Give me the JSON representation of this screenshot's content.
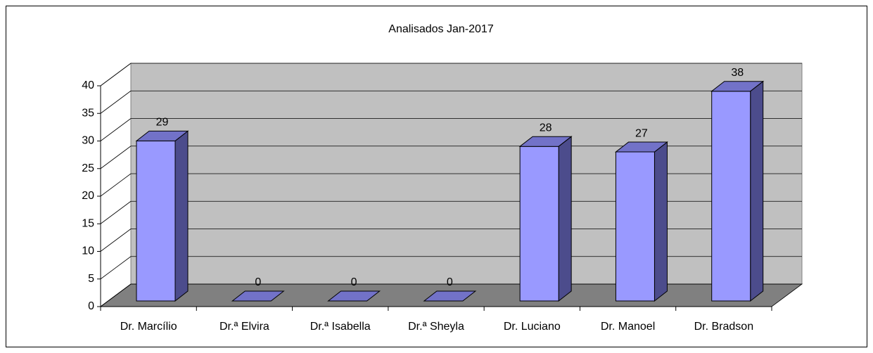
{
  "chart_data": {
    "type": "bar3d",
    "title": "Analisados Jan-2017",
    "categories": [
      "Dr. Marcílio",
      "Dr.ª Elvira",
      "Dr.ª Isabella",
      "Dr.ª Sheyla",
      "Dr. Luciano",
      "Dr. Manoel",
      "Dr. Bradson"
    ],
    "values": [
      29,
      0,
      0,
      0,
      28,
      27,
      38
    ],
    "color": "#9999ff",
    "ylim": [
      0,
      40
    ],
    "yticks": [
      0,
      5,
      10,
      15,
      20,
      25,
      30,
      35,
      40
    ],
    "grid": true
  }
}
